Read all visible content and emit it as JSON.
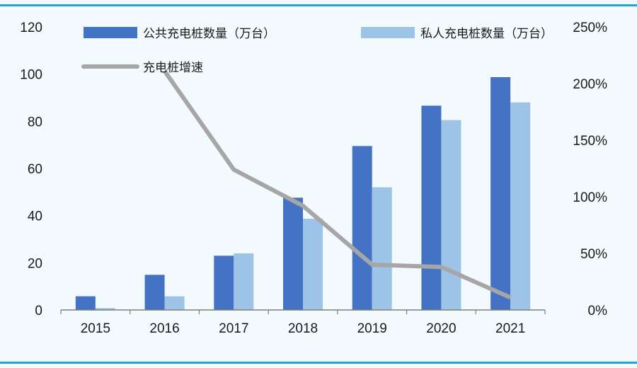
{
  "chart_data": {
    "type": "bar",
    "categories": [
      "2015",
      "2016",
      "2017",
      "2018",
      "2019",
      "2020",
      "2021"
    ],
    "series": [
      {
        "name": "公共充电桩数量（万台）",
        "type": "bar",
        "axis": "left",
        "color": "#4472c4",
        "values": [
          5.8,
          14.9,
          23.0,
          47.6,
          69.5,
          86.6,
          98.7
        ]
      },
      {
        "name": "私人充电桩数量（万台）",
        "type": "bar",
        "axis": "left",
        "color": "#9dc3e6",
        "values": [
          0.8,
          5.8,
          24.0,
          38.7,
          52.0,
          80.5,
          88.0
        ]
      },
      {
        "name": "充电桩增速",
        "type": "line",
        "axis": "right",
        "color": "#a6a6a6",
        "values": [
          null,
          211,
          124,
          92,
          40,
          38,
          11
        ]
      }
    ],
    "y_left": {
      "min": 0,
      "max": 120,
      "ticks": [
        0,
        20,
        40,
        60,
        80,
        100,
        120
      ]
    },
    "y_right": {
      "min": 0,
      "max": 250,
      "ticks": [
        "0%",
        "50%",
        "100%",
        "150%",
        "200%",
        "250%"
      ]
    },
    "legend_position": "top-left",
    "grid": false
  }
}
